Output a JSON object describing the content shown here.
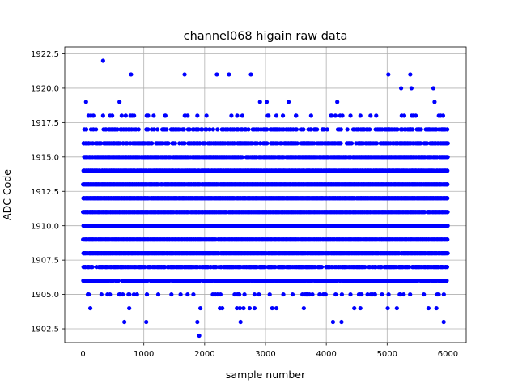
{
  "chart_data": {
    "type": "scatter",
    "title": "channel068 higain raw data",
    "xlabel": "sample number",
    "ylabel": "ADC Code",
    "xlim": [
      -300,
      6300
    ],
    "ylim": [
      1901.5,
      1923.0
    ],
    "x_ticks": [
      0,
      1000,
      2000,
      3000,
      4000,
      5000,
      6000
    ],
    "x_tick_labels": [
      "0",
      "1000",
      "2000",
      "3000",
      "4000",
      "5000",
      "6000"
    ],
    "y_ticks": [
      1902.5,
      1905.0,
      1907.5,
      1910.0,
      1912.5,
      1915.0,
      1917.5,
      1920.0,
      1922.5
    ],
    "y_tick_labels": [
      "1902.5",
      "1905.0",
      "1907.5",
      "1910.0",
      "1912.5",
      "1915.0",
      "1917.5",
      "1920.0",
      "1922.5"
    ],
    "grid": true,
    "marker_color": "#0000ff",
    "n_samples": 6000,
    "dense_levels": [
      1906,
      1907,
      1908,
      1909,
      1910,
      1911,
      1912,
      1913,
      1914,
      1915,
      1916
    ],
    "density": {
      "1905": 0.1,
      "1906": 0.7,
      "1907": 0.72,
      "1908": 0.98,
      "1909": 0.98,
      "1910": 0.99,
      "1911": 0.99,
      "1912": 0.99,
      "1913": 0.98,
      "1914": 0.96,
      "1915": 0.9,
      "1916": 0.62,
      "1917": 0.35,
      "1918": 0.05
    },
    "series": [
      {
        "name": "",
        "points": [
          [
            330,
            1922
          ],
          [
            790,
            1921
          ],
          [
            1670,
            1921
          ],
          [
            2200,
            1921
          ],
          [
            2400,
            1921
          ],
          [
            2760,
            1921
          ],
          [
            5020,
            1921
          ],
          [
            5380,
            1921
          ],
          [
            5230,
            1920
          ],
          [
            5400,
            1920
          ],
          [
            5760,
            1920
          ],
          [
            50,
            1919
          ],
          [
            600,
            1919
          ],
          [
            2910,
            1919
          ],
          [
            3020,
            1919
          ],
          [
            3380,
            1919
          ],
          [
            4180,
            1919
          ],
          [
            5780,
            1919
          ],
          [
            130,
            1918
          ],
          [
            170,
            1918
          ],
          [
            330,
            1918
          ],
          [
            480,
            1918
          ],
          [
            780,
            1918
          ],
          [
            840,
            1918
          ],
          [
            1070,
            1918
          ],
          [
            1350,
            1918
          ],
          [
            1680,
            1918
          ],
          [
            1720,
            1918
          ],
          [
            1880,
            1918
          ],
          [
            2030,
            1918
          ],
          [
            2440,
            1918
          ],
          [
            2620,
            1918
          ],
          [
            3050,
            1918
          ],
          [
            3180,
            1918
          ],
          [
            3500,
            1918
          ],
          [
            3750,
            1918
          ],
          [
            4150,
            1918
          ],
          [
            4560,
            1918
          ],
          [
            4820,
            1918
          ],
          [
            5240,
            1918
          ],
          [
            5430,
            1918
          ],
          [
            5470,
            1918
          ],
          [
            5850,
            1918
          ],
          [
            5920,
            1918
          ],
          [
            680,
            1903
          ],
          [
            1040,
            1903
          ],
          [
            1880,
            1903
          ],
          [
            2590,
            1903
          ],
          [
            4110,
            1903
          ],
          [
            4250,
            1903
          ],
          [
            5930,
            1903
          ],
          [
            1910,
            1902
          ],
          [
            120,
            1904
          ],
          [
            760,
            1904
          ],
          [
            1930,
            1904
          ],
          [
            2250,
            1904
          ],
          [
            2290,
            1904
          ],
          [
            2530,
            1904
          ],
          [
            2580,
            1904
          ],
          [
            2640,
            1904
          ],
          [
            2740,
            1904
          ],
          [
            2820,
            1904
          ],
          [
            3110,
            1904
          ],
          [
            3180,
            1904
          ],
          [
            3630,
            1904
          ],
          [
            4460,
            1904
          ],
          [
            4560,
            1904
          ],
          [
            5010,
            1904
          ],
          [
            5160,
            1904
          ],
          [
            5680,
            1904
          ],
          [
            5810,
            1904
          ]
        ]
      }
    ]
  }
}
